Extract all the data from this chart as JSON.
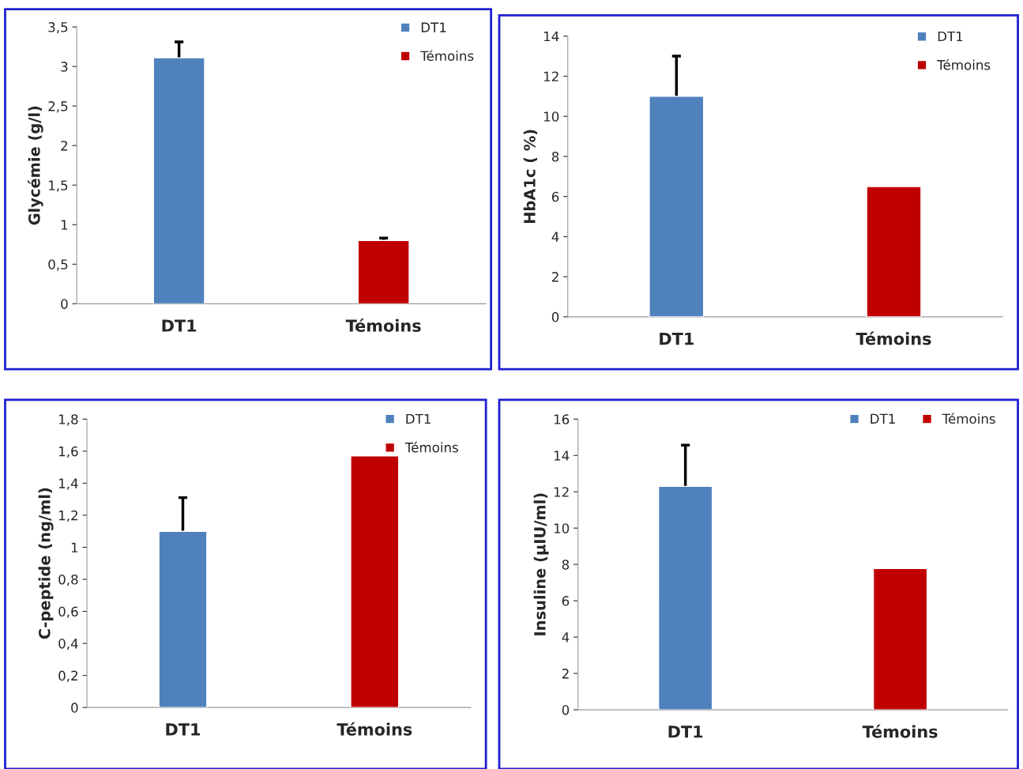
{
  "chart_data": [
    {
      "type": "bar",
      "ylabel": "Glycémie (g/l)",
      "categories": [
        "DT1",
        "Témoins"
      ],
      "ylim": [
        0,
        3.5
      ],
      "yticks": [
        0,
        {
          "value": 0.5,
          "label": "0,5"
        },
        1,
        {
          "value": 1.5,
          "label": "1,5"
        },
        2,
        {
          "value": 2.5,
          "label": "2,5"
        },
        3,
        {
          "value": 3.5,
          "label": "3,5"
        }
      ],
      "series": [
        {
          "name": "DT1",
          "color": "#4f81bd",
          "values": [
            3.11,
            null
          ],
          "errors": [
            0.2,
            null
          ]
        },
        {
          "name": "Témoins",
          "color": "#c00000",
          "values": [
            null,
            0.8
          ],
          "errors": [
            null,
            0.03
          ]
        }
      ],
      "legend": "top right",
      "grid": false
    },
    {
      "type": "bar",
      "ylabel": "HbA1c ( %)",
      "categories": [
        "DT1",
        "Témoins"
      ],
      "ylim": [
        0,
        14
      ],
      "yticks": [
        0,
        2,
        4,
        6,
        8,
        10,
        12,
        14
      ],
      "series": [
        {
          "name": "DT1",
          "color": "#4f81bd",
          "values": [
            11.0,
            null
          ],
          "errors": [
            2.0,
            null
          ]
        },
        {
          "name": "Témoins",
          "color": "#c00000",
          "values": [
            null,
            6.5
          ]
        }
      ],
      "legend": "top right",
      "grid": false
    },
    {
      "type": "bar",
      "ylabel": "C-peptide (ng/ml)",
      "categories": [
        "DT1",
        "Témoins"
      ],
      "ylim": [
        0,
        1.8
      ],
      "yticks": [
        0,
        {
          "value": 0.2,
          "label": "0,2"
        },
        {
          "value": 0.4,
          "label": "0,4"
        },
        {
          "value": 0.6,
          "label": "0,6"
        },
        {
          "value": 0.8,
          "label": "0,8"
        },
        1,
        {
          "value": 1.2,
          "label": "1,2"
        },
        {
          "value": 1.4,
          "label": "1,4"
        },
        {
          "value": 1.6,
          "label": "1,6"
        },
        {
          "value": 1.8,
          "label": "1,8"
        }
      ],
      "series": [
        {
          "name": "DT1",
          "color": "#4f81bd",
          "values": [
            1.1,
            null
          ],
          "errors": [
            0.21,
            null
          ]
        },
        {
          "name": "Témoins",
          "color": "#c00000",
          "values": [
            null,
            1.57
          ]
        }
      ],
      "legend": "top right",
      "grid": false
    },
    {
      "type": "bar",
      "ylabel": "Insuline (µIU/ml)",
      "categories": [
        "DT1",
        "Témoins"
      ],
      "ylim": [
        0,
        16
      ],
      "yticks": [
        0,
        2,
        4,
        6,
        8,
        10,
        12,
        14,
        16
      ],
      "series": [
        {
          "name": "DT1",
          "color": "#4f81bd",
          "values": [
            12.3,
            null
          ],
          "errors": [
            2.27,
            null
          ]
        },
        {
          "name": "Témoins",
          "color": "#c00000",
          "values": [
            null,
            7.78
          ]
        }
      ],
      "legend": "top",
      "grid": false
    }
  ]
}
